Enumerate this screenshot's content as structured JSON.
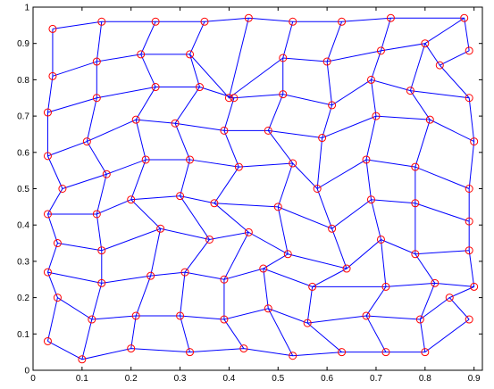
{
  "chart_data": {
    "type": "mesh",
    "xlim": [
      0,
      0.917
    ],
    "ylim": [
      0,
      1
    ],
    "xticks": [
      0,
      0.1,
      0.2,
      0.3,
      0.4,
      0.5,
      0.6,
      0.7,
      0.8,
      0.9
    ],
    "yticks": [
      0,
      0.1,
      0.2,
      0.3,
      0.4,
      0.5,
      0.6,
      0.7,
      0.8,
      0.9,
      1
    ],
    "line_color": "#0000ff",
    "marker_color": "#ff0000",
    "rows": [
      {
        "x": [
          0.03,
          0.1,
          0.2,
          0.32,
          0.43,
          0.53,
          0.63,
          0.72,
          0.8,
          0.89
        ],
        "y": [
          0.08,
          0.03,
          0.06,
          0.05,
          0.06,
          0.04,
          0.05,
          0.05,
          0.05,
          0.14
        ]
      },
      {
        "x": [
          0.05,
          0.12,
          0.21,
          0.3,
          0.39,
          0.48,
          0.56,
          0.68,
          0.79,
          0.85
        ],
        "y": [
          0.2,
          0.14,
          0.15,
          0.15,
          0.14,
          0.17,
          0.13,
          0.15,
          0.14,
          0.2
        ]
      },
      {
        "x": [
          0.03,
          0.14,
          0.24,
          0.31,
          0.39,
          0.47,
          0.57,
          0.72,
          0.82,
          0.9
        ],
        "y": [
          0.27,
          0.24,
          0.26,
          0.27,
          0.25,
          0.28,
          0.23,
          0.23,
          0.24,
          0.23
        ]
      },
      {
        "x": [
          0.05,
          0.14,
          0.26,
          0.36,
          0.44,
          0.52,
          0.64,
          0.71,
          0.78,
          0.89
        ],
        "y": [
          0.35,
          0.33,
          0.39,
          0.36,
          0.38,
          0.32,
          0.28,
          0.36,
          0.32,
          0.33
        ]
      },
      {
        "x": [
          0.03,
          0.13,
          0.2,
          0.3,
          0.37,
          0.5,
          0.61,
          0.69,
          0.78,
          0.89
        ],
        "y": [
          0.43,
          0.43,
          0.47,
          0.48,
          0.46,
          0.45,
          0.39,
          0.47,
          0.46,
          0.41
        ]
      },
      {
        "x": [
          0.06,
          0.15,
          0.23,
          0.32,
          0.42,
          0.53,
          0.58,
          0.68,
          0.78,
          0.89
        ],
        "y": [
          0.5,
          0.54,
          0.58,
          0.58,
          0.56,
          0.57,
          0.5,
          0.58,
          0.56,
          0.5
        ]
      },
      {
        "x": [
          0.03,
          0.11,
          0.21,
          0.29,
          0.39,
          0.48,
          0.59,
          0.7,
          0.81,
          0.9
        ],
        "y": [
          0.59,
          0.63,
          0.69,
          0.68,
          0.66,
          0.66,
          0.64,
          0.7,
          0.69,
          0.63
        ]
      },
      {
        "x": [
          0.03,
          0.13,
          0.25,
          0.34,
          0.41,
          0.51,
          0.61,
          0.69,
          0.77,
          0.89
        ],
        "y": [
          0.71,
          0.75,
          0.78,
          0.78,
          0.75,
          0.76,
          0.73,
          0.8,
          0.77,
          0.75
        ]
      },
      {
        "x": [
          0.04,
          0.13,
          0.22,
          0.32,
          0.4,
          0.51,
          0.6,
          0.71,
          0.8,
          0.83
        ],
        "y": [
          0.81,
          0.85,
          0.87,
          0.87,
          0.75,
          0.86,
          0.85,
          0.88,
          0.9,
          0.84
        ]
      },
      {
        "x": [
          0.04,
          0.14,
          0.25,
          0.35,
          0.44,
          0.53,
          0.63,
          0.73,
          0.88,
          0.89
        ],
        "y": [
          0.94,
          0.96,
          0.96,
          0.96,
          0.97,
          0.96,
          0.96,
          0.97,
          0.97,
          0.88
        ]
      }
    ]
  }
}
